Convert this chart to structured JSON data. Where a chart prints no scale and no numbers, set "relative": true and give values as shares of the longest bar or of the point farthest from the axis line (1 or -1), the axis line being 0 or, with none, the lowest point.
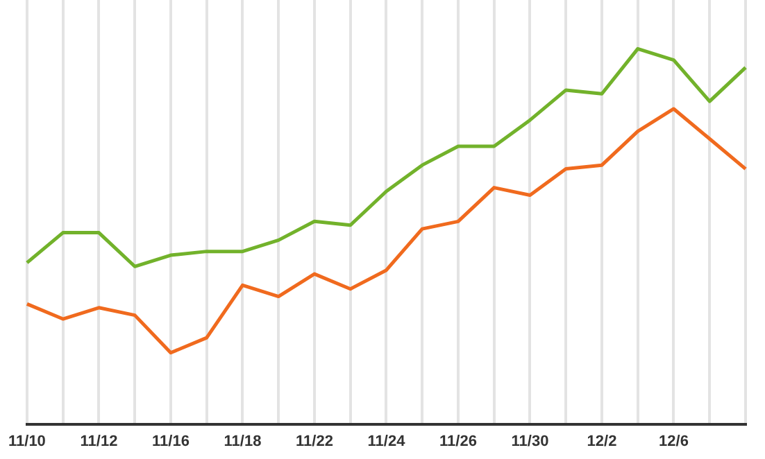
{
  "chart_data": {
    "type": "line",
    "relative": true,
    "grid": "x",
    "legend": false,
    "marker": "none",
    "line_style": "solid",
    "categories": [
      "11/10",
      null,
      "11/12",
      null,
      "11/16",
      null,
      "11/18",
      null,
      "11/22",
      null,
      "11/24",
      null,
      "11/26",
      null,
      "11/30",
      null,
      "12/2",
      null,
      "12/6",
      null,
      null
    ],
    "series": [
      {
        "color": "#72b22b",
        "values": [
          0.43,
          0.51,
          0.51,
          0.42,
          0.45,
          0.46,
          0.46,
          0.49,
          0.54,
          0.53,
          0.62,
          0.69,
          0.74,
          0.74,
          0.81,
          0.89,
          0.88,
          1,
          0.97,
          0.86,
          0.95
        ]
      },
      {
        "color": "#f06a1e",
        "values": [
          0.32,
          0.28,
          0.31,
          0.29,
          0.19,
          0.23,
          0.37,
          0.34,
          0.4,
          0.36,
          0.41,
          0.52,
          0.54,
          0.63,
          0.61,
          0.68,
          0.69,
          0.78,
          0.84,
          0.76,
          0.68
        ]
      }
    ]
  }
}
